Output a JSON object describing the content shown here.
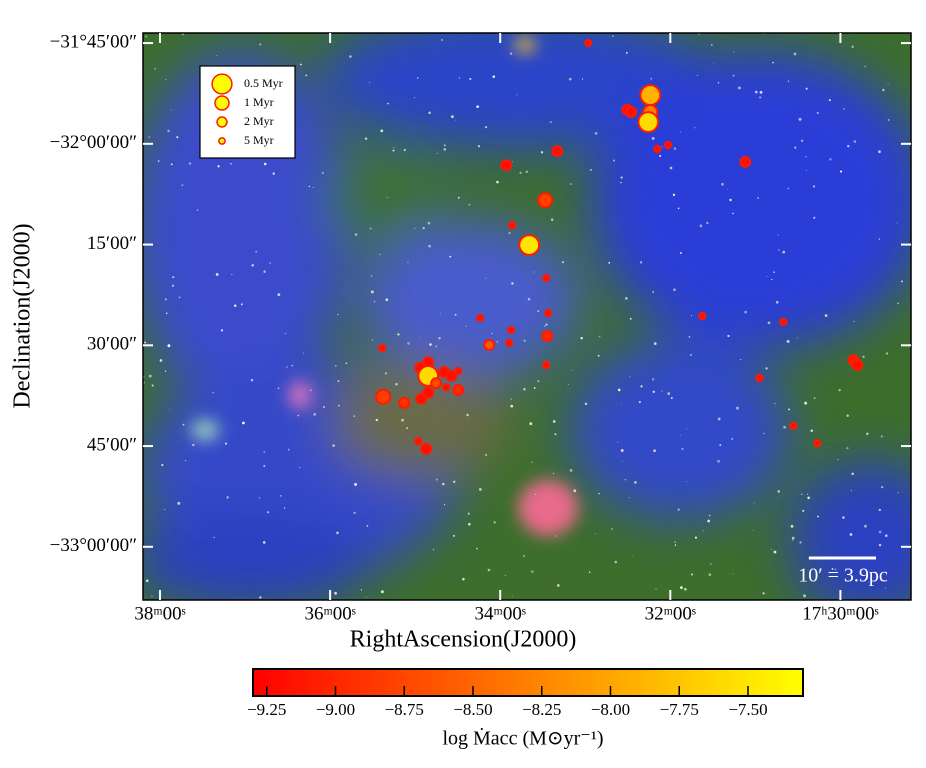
{
  "chart_data": {
    "type": "scatter",
    "x_label": "RightAscension(J2000)",
    "y_label": "Declination(J2000)",
    "xlim": [
      38.2,
      29.17
    ],
    "ylim": [
      -33.132,
      -31.725
    ],
    "xticks": [
      {
        "value": 38,
        "label": "38ᵐ00ˢ"
      },
      {
        "value": 36,
        "label": "36ᵐ00ˢ"
      },
      {
        "value": 34,
        "label": "34ᵐ00ˢ"
      },
      {
        "value": 32,
        "label": "32ᵐ00ˢ"
      },
      {
        "value": 30,
        "label": "17ʰ30ᵐ00ˢ"
      }
    ],
    "yticks": [
      {
        "value": -31.75,
        "label": "−31°45′00″"
      },
      {
        "value": -32.0,
        "label": "−32°00′00″"
      },
      {
        "value": -32.25,
        "label": "15′00″"
      },
      {
        "value": -32.5,
        "label": "30′00″"
      },
      {
        "value": -32.75,
        "label": "45′00″"
      },
      {
        "value": -33.0,
        "label": "−33°00′00″"
      }
    ],
    "x": [
      32.965,
      32.235,
      32.235,
      32.259,
      32.506,
      32.459,
      32.024,
      32.153,
      33.329,
      33.929,
      31.118,
      33.471,
      33.859,
      33.659,
      33.459,
      33.435,
      34.235,
      33.871,
      33.894,
      33.447,
      34.129,
      35.388,
      33.459,
      31.624,
      30.671,
      30.953,
      29.847,
      29.8,
      34.847,
      34.941,
      34.847,
      34.659,
      34.576,
      34.494,
      34.753,
      34.635,
      34.494,
      34.847,
      34.929,
      35.376,
      35.129,
      34.965,
      34.871,
      30.553,
      30.271
    ],
    "values": [
      -31.75,
      -31.879,
      -31.921,
      -31.946,
      -31.916,
      -31.921,
      -32.003,
      -32.013,
      -32.018,
      -32.053,
      -32.045,
      -32.14,
      -32.202,
      -32.251,
      -32.333,
      -32.42,
      -32.432,
      -32.462,
      -32.494,
      -32.477,
      -32.499,
      -32.507,
      -32.549,
      -32.427,
      -32.442,
      -32.581,
      -32.537,
      -32.549,
      -32.542,
      -32.556,
      -32.576,
      -32.566,
      -32.576,
      -32.564,
      -32.594,
      -32.604,
      -32.611,
      -32.618,
      -32.633,
      -32.628,
      -32.643,
      -32.738,
      -32.757,
      -32.7,
      -32.743
    ],
    "age": [
      5,
      0.5,
      1,
      0.5,
      2,
      2,
      5,
      5,
      2,
      2,
      2,
      1,
      5,
      0.5,
      5,
      5,
      5,
      5,
      5,
      2,
      2,
      5,
      5,
      5,
      5,
      5,
      2,
      2,
      2,
      2,
      0.5,
      2,
      2,
      5,
      2,
      5,
      2,
      2,
      2,
      1,
      2,
      5,
      2,
      5,
      5
    ],
    "log_macc": [
      -9.2,
      -7.9,
      -8.3,
      -7.6,
      -9.2,
      -9.2,
      -9.2,
      -9.2,
      -9.2,
      -9.2,
      -9.2,
      -8.8,
      -9.2,
      -7.5,
      -9.2,
      -9.2,
      -9.2,
      -9.2,
      -9.2,
      -9.0,
      -8.6,
      -9.2,
      -9.2,
      -9.2,
      -9.2,
      -9.2,
      -9.1,
      -9.2,
      -9.2,
      -9.2,
      -7.6,
      -9.2,
      -9.2,
      -9.2,
      -8.7,
      -9.2,
      -9.0,
      -9.2,
      -9.2,
      -8.8,
      -8.9,
      -9.2,
      -9.2,
      -9.2,
      -9.2
    ],
    "edge_color": "#ff1a00",
    "size_legend": {
      "labels": [
        "0.5 Myr",
        "1 Myr",
        "2 Myr",
        "5 Myr"
      ],
      "values": [
        0.5,
        1,
        2,
        5
      ]
    },
    "scale_bar": {
      "label": "10′ = 3.9pc",
      "length": 10
    },
    "colorbar": {
      "label": "log Ṁacc (M⊙yr⁻¹)",
      "colormap": [
        "#ff0000",
        "#ffff00"
      ],
      "lim": [
        -9.3,
        -7.3
      ],
      "ticks": [
        {
          "value": -9.25,
          "label": "−9.25"
        },
        {
          "value": -9.0,
          "label": "−9.00"
        },
        {
          "value": -8.75,
          "label": "−8.75"
        },
        {
          "value": -8.5,
          "label": "−8.50"
        },
        {
          "value": -8.25,
          "label": "−8.25"
        },
        {
          "value": -8.0,
          "label": "−8.00"
        },
        {
          "value": -7.75,
          "label": "−7.75"
        },
        {
          "value": -7.5,
          "label": "−7.50"
        }
      ]
    }
  }
}
